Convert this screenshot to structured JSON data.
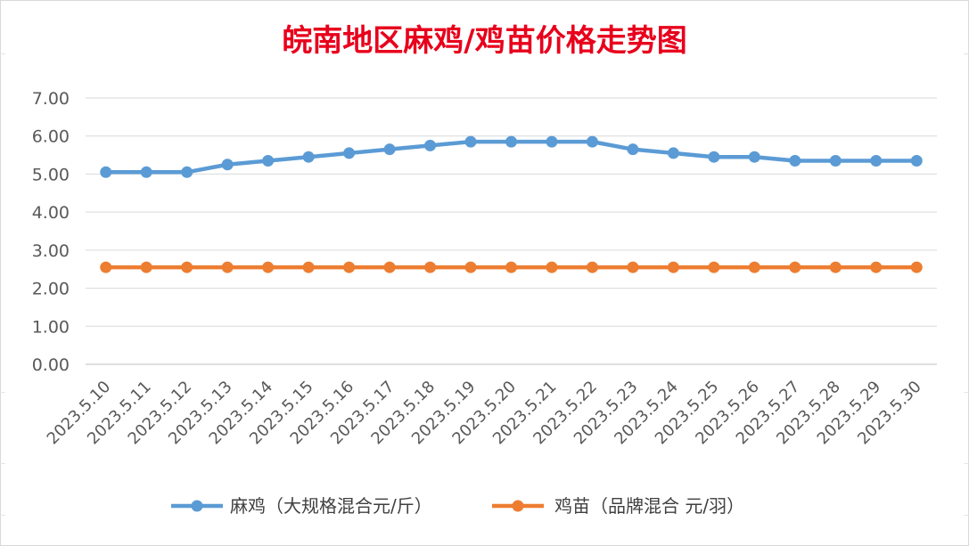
{
  "chart_data": {
    "type": "line",
    "title": "皖南地区麻鸡/鸡苗价格走势图",
    "xlabel": "",
    "ylabel": "",
    "ylim": [
      0,
      7
    ],
    "ytick_step": 1,
    "ytick_labels": [
      "0.00",
      "1.00",
      "2.00",
      "3.00",
      "4.00",
      "5.00",
      "6.00",
      "7.00"
    ],
    "grid": true,
    "legend_position": "bottom",
    "categories": [
      "2023.5.10",
      "2023.5.11",
      "2023.5.12",
      "2023.5.13",
      "2023.5.14",
      "2023.5.15",
      "2023.5.16",
      "2023.5.17",
      "2023.5.18",
      "2023.5.19",
      "2023.5.20",
      "2023.5.21",
      "2023.5.22",
      "2023.5.23",
      "2023.5.24",
      "2023.5.25",
      "2023.5.26",
      "2023.5.27",
      "2023.5.28",
      "2023.5.29",
      "2023.5.30"
    ],
    "series": [
      {
        "name": "麻鸡（大规格混合元/斤）",
        "color": "#5b9bd5",
        "values": [
          5.05,
          5.05,
          5.05,
          5.25,
          5.35,
          5.45,
          5.55,
          5.65,
          5.75,
          5.85,
          5.85,
          5.85,
          5.85,
          5.65,
          5.55,
          5.45,
          5.45,
          5.35,
          5.35,
          5.35,
          5.35
        ]
      },
      {
        "name": "鸡苗（品牌混合 元/羽）",
        "color": "#ed7d31",
        "values": [
          2.55,
          2.55,
          2.55,
          2.55,
          2.55,
          2.55,
          2.55,
          2.55,
          2.55,
          2.55,
          2.55,
          2.55,
          2.55,
          2.55,
          2.55,
          2.55,
          2.55,
          2.55,
          2.55,
          2.55,
          2.55
        ]
      }
    ]
  }
}
